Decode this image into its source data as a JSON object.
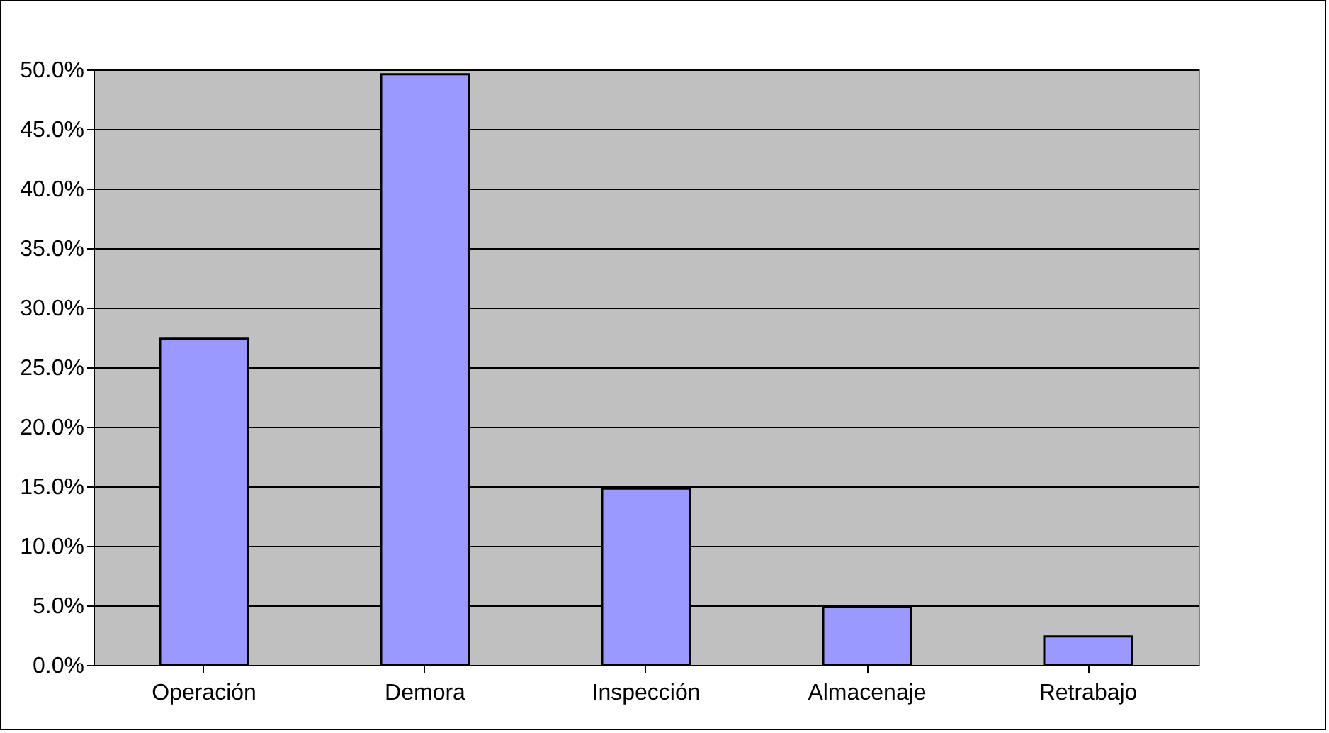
{
  "chart_data": {
    "type": "bar",
    "categories": [
      "Operación",
      "Demora",
      "Inspección",
      "Almacenaje",
      "Retrabajo"
    ],
    "values": [
      27.4,
      49.6,
      14.8,
      4.9,
      2.4
    ],
    "color": "#9999ff",
    "ylim": [
      0,
      50
    ],
    "yticks": [
      {
        "value": 0,
        "label": "0.0%"
      },
      {
        "value": 5,
        "label": "5.0%"
      },
      {
        "value": 10,
        "label": "10.0%"
      },
      {
        "value": 15,
        "label": "15.0%"
      },
      {
        "value": 20,
        "label": "20.0%"
      },
      {
        "value": 25,
        "label": "25.0%"
      },
      {
        "value": 30,
        "label": "30.0%"
      },
      {
        "value": 35,
        "label": "35.0%"
      },
      {
        "value": 40,
        "label": "40.0%"
      },
      {
        "value": 45,
        "label": "45.0%"
      },
      {
        "value": 50,
        "label": "50.0%"
      }
    ],
    "grid": "y",
    "legend": false
  }
}
